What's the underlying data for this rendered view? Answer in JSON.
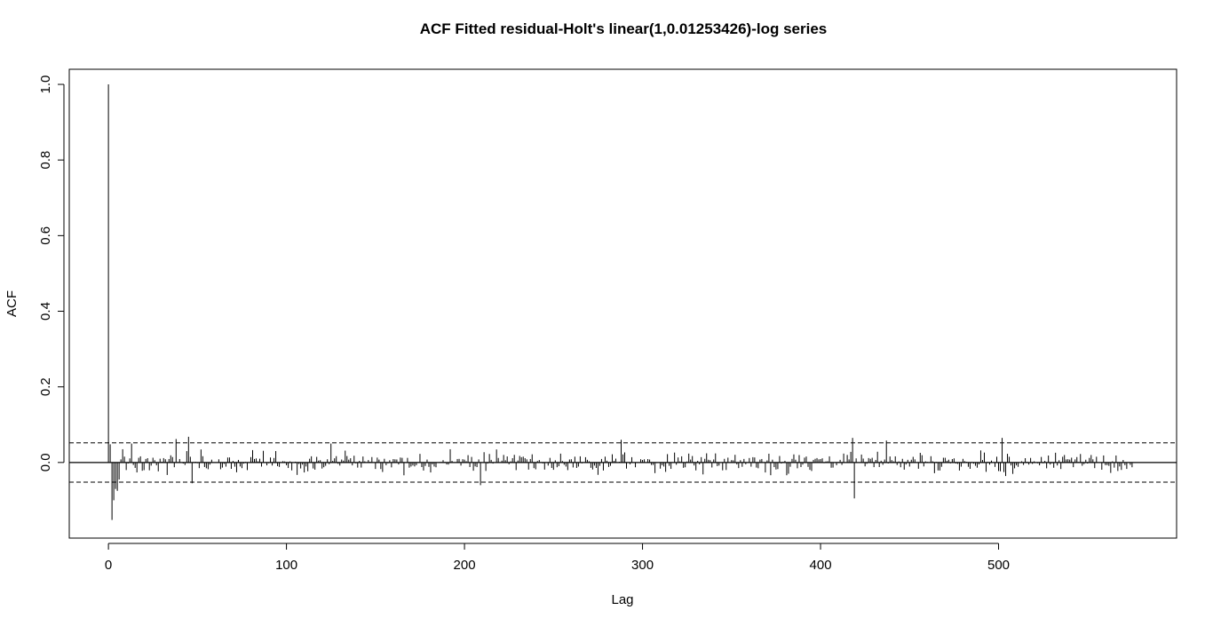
{
  "chart_data": {
    "type": "bar",
    "title": "ACF Fitted residual-Holt's linear(1,0.01253426)-log series",
    "xlabel": "Lag",
    "ylabel": "ACF",
    "xlim": [
      -22,
      600
    ],
    "ylim": [
      -0.2,
      1.04
    ],
    "x_ticks": [
      0,
      100,
      200,
      300,
      400,
      500
    ],
    "y_ticks": [
      0.0,
      0.2,
      0.4,
      0.6,
      0.8,
      1.0
    ],
    "x_tick_labels": [
      "0",
      "100",
      "200",
      "300",
      "400",
      "500"
    ],
    "y_tick_labels": [
      "0.0",
      "0.2",
      "0.4",
      "0.6",
      "0.8",
      "1.0"
    ],
    "confidence_bound": 0.052,
    "max_lag": 575,
    "notable_lags": [
      {
        "lag": 0,
        "acf": 1.0
      },
      {
        "lag": 1,
        "acf": 0.048
      },
      {
        "lag": 2,
        "acf": -0.152
      },
      {
        "lag": 3,
        "acf": -0.1
      },
      {
        "lag": 4,
        "acf": -0.07
      },
      {
        "lag": 5,
        "acf": -0.075
      },
      {
        "lag": 6,
        "acf": -0.045
      },
      {
        "lag": 8,
        "acf": 0.035
      },
      {
        "lag": 13,
        "acf": 0.05
      },
      {
        "lag": 38,
        "acf": 0.062
      },
      {
        "lag": 45,
        "acf": 0.068
      },
      {
        "lag": 47,
        "acf": -0.055
      },
      {
        "lag": 125,
        "acf": 0.05
      },
      {
        "lag": 209,
        "acf": -0.06
      },
      {
        "lag": 288,
        "acf": 0.06
      },
      {
        "lag": 418,
        "acf": 0.065
      },
      {
        "lag": 419,
        "acf": -0.095
      },
      {
        "lag": 437,
        "acf": 0.058
      },
      {
        "lag": 502,
        "acf": 0.065
      }
    ],
    "grid": false,
    "legend": "none",
    "colors": {
      "bars": "#000000",
      "bounds": "#000000",
      "zero_line": "#000000"
    }
  }
}
